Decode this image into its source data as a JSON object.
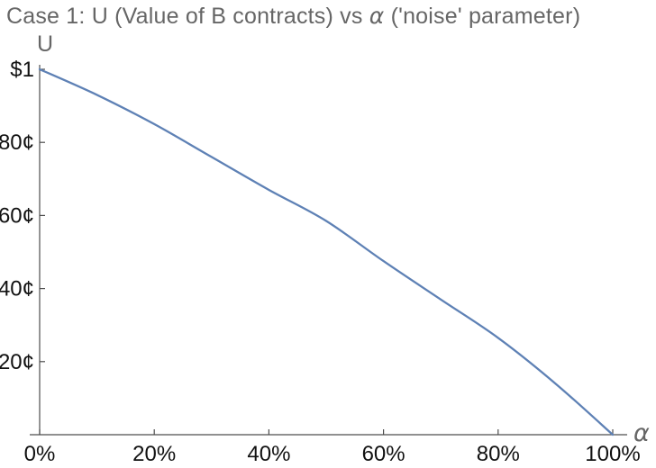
{
  "header": {
    "title_full": "Case 1: U (Value of B contracts) vs α ('noise' parameter)",
    "title_parts": {
      "prefix": "Case 1: U (Value of B contracts) vs ",
      "alpha": "α",
      "suffix": " ('noise' parameter)"
    },
    "title_color": "#666666"
  },
  "chart_data": {
    "type": "line",
    "title": "Case 1: U (Value of B contracts) vs α ('noise' parameter)",
    "xlabel": "α",
    "ylabel": "U",
    "xlim": [
      0,
      1
    ],
    "ylim": [
      0,
      1
    ],
    "grid": false,
    "legend": false,
    "background": "#ffffff",
    "axis_color": "#4d4d4d",
    "tick_label_color": "#111111",
    "x_tick_values": [
      0,
      0.2,
      0.4,
      0.6,
      0.8,
      1.0
    ],
    "x_tick_labels": [
      "0%",
      "20%",
      "40%",
      "60%",
      "80%",
      "100%"
    ],
    "y_tick_values": [
      1.0,
      0.8,
      0.6,
      0.4,
      0.2
    ],
    "y_tick_labels": [
      "$1",
      "80¢",
      "60¢",
      "40¢",
      "20¢"
    ],
    "series": [
      {
        "name": "U (Value of B contracts)",
        "color": "#5e81b5",
        "x": [
          0,
          0.1,
          0.2,
          0.3,
          0.4,
          0.5,
          0.6,
          0.7,
          0.8,
          0.9,
          1.0
        ],
        "y": [
          1.0,
          0.93,
          0.85,
          0.76,
          0.67,
          0.585,
          0.475,
          0.37,
          0.265,
          0.14,
          0.0
        ]
      }
    ]
  }
}
